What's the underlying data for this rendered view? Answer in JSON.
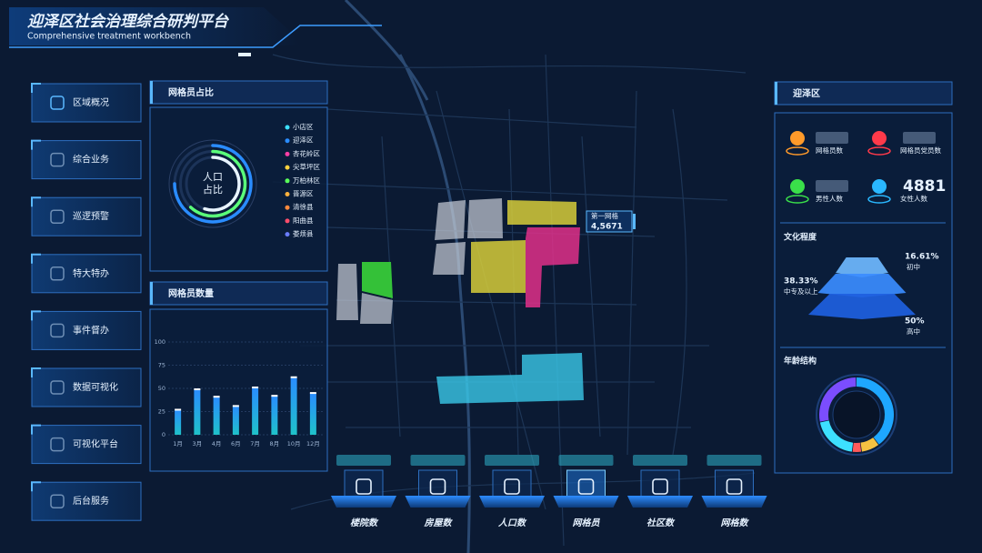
{
  "header": {
    "title": "迎泽区社会治理综合研判平台",
    "subtitle": "Comprehensive treatment workbench"
  },
  "menu": [
    "区域概况",
    "综合业务",
    "巡逻预警",
    "特大特办",
    "事件督办",
    "数据可视化",
    "可视化平台",
    "后台服务"
  ],
  "grid_ratio": {
    "type": "donut",
    "title": "网格员占比",
    "center_label": [
      "人口",
      "占比"
    ],
    "max": 100,
    "rings": [
      {
        "color": "#2a8cff",
        "value": 75
      },
      {
        "color": "#5aff7a",
        "value": 62
      },
      {
        "color": "#e8f4ff",
        "value": 55
      }
    ],
    "legend": [
      {
        "name": "小店区",
        "color": "#3de0ff"
      },
      {
        "name": "迎泽区",
        "color": "#2a8cff"
      },
      {
        "name": "杏花岭区",
        "color": "#ff3ea5"
      },
      {
        "name": "尖草坪区",
        "color": "#ffd23f"
      },
      {
        "name": "万柏林区",
        "color": "#5aff5a"
      },
      {
        "name": "晋源区",
        "color": "#ffb13d"
      },
      {
        "name": "清徐县",
        "color": "#ff8a3d"
      },
      {
        "name": "阳曲县",
        "color": "#ff4d6a"
      },
      {
        "name": "娄烦县",
        "color": "#6a7dff"
      }
    ]
  },
  "grid_count": {
    "type": "bar",
    "title": "网格员数量",
    "categories": [
      "1月",
      "3月",
      "4月",
      "6月",
      "7月",
      "8月",
      "10月",
      "12月"
    ],
    "values": [
      27,
      49,
      41,
      31,
      51,
      42,
      62,
      45
    ],
    "color": "#2a8cff",
    "ylim": [
      0,
      100
    ],
    "yticks": [
      0,
      25,
      50,
      75,
      100
    ],
    "grid": true
  },
  "map": {
    "callout": {
      "title": "第一网格",
      "value": 45671,
      "value_label": "4,5671"
    }
  },
  "nav": {
    "items": [
      "楼院数",
      "房屋数",
      "人口数",
      "网格员",
      "社区数",
      "网格数"
    ],
    "active": 3
  },
  "region": {
    "title": "迎泽区",
    "stats": [
      {
        "label": "网格员数",
        "color": "#ff9a2a"
      },
      {
        "label": "网格员党员数",
        "color": "#ff3a4a"
      },
      {
        "label": "男性人数",
        "color": "#3adf4a"
      },
      {
        "label": "女性人数",
        "color": "#2ab8ff",
        "value": 4881
      }
    ]
  },
  "education": {
    "type": "pyramid",
    "title": "文化程度",
    "items": [
      {
        "name": "初中",
        "value": 16.61,
        "value_label": "16.61%"
      },
      {
        "name": "中专及以上",
        "value": 38.33,
        "value_label": "38.33%"
      },
      {
        "name": "高中",
        "value": 50,
        "value_label": "50%"
      }
    ]
  },
  "age": {
    "type": "donut",
    "title": "年龄结构",
    "values": [
      40,
      8,
      4,
      20,
      28
    ],
    "colors": [
      "#1ea7ff",
      "#f5c242",
      "#ff5a5a",
      "#3de0ff",
      "#7b4dff"
    ]
  }
}
